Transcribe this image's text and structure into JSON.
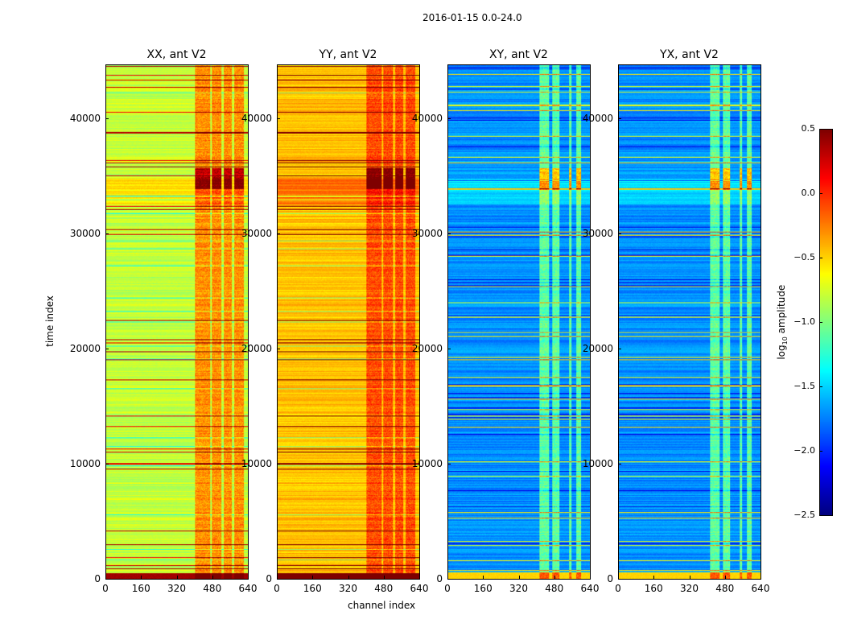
{
  "figure_title": "2016-01-15 0.0-24.0",
  "chart_data": {
    "type": "heatmap",
    "xlabel": "channel index",
    "ylabel": "time index",
    "xlim": [
      0,
      640
    ],
    "ylim": [
      0,
      44700
    ],
    "xticks": [
      "0",
      "160",
      "320",
      "480",
      "640"
    ],
    "yticks": [
      "0",
      "10000",
      "20000",
      "30000",
      "40000"
    ],
    "panels": [
      {
        "title": "XX, ant V2",
        "background_log10": -0.8,
        "band_log10": -0.3,
        "band_channels": [
          [
            400,
            470
          ],
          [
            475,
            520
          ],
          [
            530,
            565
          ],
          [
            575,
            620
          ]
        ]
      },
      {
        "title": "YY, ant V2",
        "background_log10": -0.45,
        "band_log10": -0.1,
        "band_channels": [
          [
            400,
            470
          ],
          [
            475,
            520
          ],
          [
            530,
            565
          ],
          [
            575,
            620
          ]
        ]
      },
      {
        "title": "XY, ant V2",
        "background_log10": -1.7,
        "band_log10": -1.1,
        "band_channels": [
          [
            410,
            455
          ],
          [
            470,
            500
          ],
          [
            545,
            555
          ],
          [
            575,
            600
          ]
        ]
      },
      {
        "title": "YX, ant V2",
        "background_log10": -1.7,
        "band_log10": -1.1,
        "band_channels": [
          [
            410,
            455
          ],
          [
            470,
            500
          ],
          [
            545,
            555
          ],
          [
            575,
            600
          ]
        ]
      }
    ],
    "colorbar": {
      "label": "log10 amplitude",
      "label_main": "log",
      "label_sub": "10",
      "label_rest": " amplitude",
      "range": [
        -2.5,
        0.5
      ],
      "ticks": [
        "0.5",
        "0.0",
        "−0.5",
        "−1.0",
        "−1.5",
        "−2.0",
        "−2.5"
      ],
      "colormap": "jet"
    }
  }
}
